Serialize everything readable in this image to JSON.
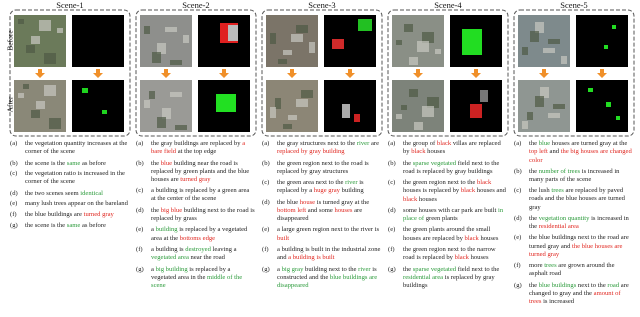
{
  "labels": {
    "before": "Before",
    "after": "After"
  },
  "colors": {
    "k": "#222222",
    "r": "#e0261f",
    "g": "#2a9a3a"
  },
  "scenes": [
    {
      "title": "Scene-1",
      "captions": [
        {
          "label": "(a)",
          "parts": [
            [
              "k",
              "the vegetation quantity increases at the corner of the scene"
            ]
          ]
        },
        {
          "label": "(b)",
          "parts": [
            [
              "k",
              "the scene is the "
            ],
            [
              "g",
              "same"
            ],
            [
              "k",
              " as before"
            ]
          ]
        },
        {
          "label": "(c)",
          "parts": [
            [
              "k",
              "the vegetation ratio is increased in the corner of the scene"
            ]
          ]
        },
        {
          "label": "(d)",
          "parts": [
            [
              "k",
              "the two scenes seem "
            ],
            [
              "g",
              "identical"
            ]
          ]
        },
        {
          "label": "(e)",
          "parts": [
            [
              "k",
              "many lush trees appear on the bareland"
            ]
          ]
        },
        {
          "label": "(f)",
          "parts": [
            [
              "k",
              "the blue buildings are "
            ],
            [
              "r",
              "turned gray"
            ]
          ]
        },
        {
          "label": "(g)",
          "parts": [
            [
              "k",
              "the scene is the "
            ],
            [
              "g",
              "same"
            ],
            [
              "k",
              " as before"
            ]
          ]
        }
      ]
    },
    {
      "title": "Scene-2",
      "captions": [
        {
          "label": "(a)",
          "parts": [
            [
              "k",
              "the gray buildings are replaced by "
            ],
            [
              "r",
              "a bare field"
            ],
            [
              "k",
              " at the top edge"
            ]
          ]
        },
        {
          "label": "(b)",
          "parts": [
            [
              "k",
              "the "
            ],
            [
              "r",
              "blue"
            ],
            [
              "k",
              " building near the road is replaced by green plants and the blue houses are "
            ],
            [
              "r",
              "turned gray"
            ]
          ]
        },
        {
          "label": "(c)",
          "parts": [
            [
              "k",
              "a building is replaced by a green area at the center of the scene"
            ]
          ]
        },
        {
          "label": "(d)",
          "parts": [
            [
              "k",
              "the "
            ],
            [
              "r",
              "big blue"
            ],
            [
              "k",
              " building next to the road is replaced by grass"
            ]
          ]
        },
        {
          "label": "(e)",
          "parts": [
            [
              "k",
              "a "
            ],
            [
              "g",
              "building"
            ],
            [
              "k",
              " is replaced by a vegetated area at the "
            ],
            [
              "r",
              "bottoms edge"
            ]
          ]
        },
        {
          "label": "(f)",
          "parts": [
            [
              "k",
              "a building is "
            ],
            [
              "g",
              "destroyed"
            ],
            [
              "k",
              " leaving a "
            ],
            [
              "g",
              "vegetated area"
            ],
            [
              "k",
              " near the road"
            ]
          ]
        },
        {
          "label": "(g)",
          "parts": [
            [
              "k",
              "a "
            ],
            [
              "g",
              "big building"
            ],
            [
              "k",
              " is replaced by a vegetated area in the "
            ],
            [
              "g",
              "middle of the scene"
            ]
          ]
        }
      ]
    },
    {
      "title": "Scene-3",
      "captions": [
        {
          "label": "(a)",
          "parts": [
            [
              "k",
              "the gray structures next to the "
            ],
            [
              "g",
              "river"
            ],
            [
              "k",
              " are "
            ],
            [
              "r",
              "replaced by gray building"
            ]
          ]
        },
        {
          "label": "(b)",
          "parts": [
            [
              "k",
              "the green region next to the road is replaced by gray structures"
            ]
          ]
        },
        {
          "label": "(c)",
          "parts": [
            [
              "k",
              "the green area next to the "
            ],
            [
              "g",
              "river"
            ],
            [
              "k",
              " is replaced by a "
            ],
            [
              "r",
              "huge gray"
            ],
            [
              "k",
              " building"
            ]
          ]
        },
        {
          "label": "(d)",
          "parts": [
            [
              "k",
              "the blue "
            ],
            [
              "r",
              "house"
            ],
            [
              "k",
              " is turned gray at the "
            ],
            [
              "r",
              "bottom left"
            ],
            [
              "k",
              " and some "
            ],
            [
              "r",
              "houses"
            ],
            [
              "k",
              " are disappeared"
            ]
          ]
        },
        {
          "label": "(e)",
          "parts": [
            [
              "k",
              "a large green region next to the river is "
            ],
            [
              "r",
              "built"
            ]
          ]
        },
        {
          "label": "(f)",
          "parts": [
            [
              "k",
              "a building is built in the industrial zone and "
            ],
            [
              "r",
              "a building is built"
            ]
          ]
        },
        {
          "label": "(g)",
          "parts": [
            [
              "k",
              "a "
            ],
            [
              "g",
              "big gray"
            ],
            [
              "k",
              " building next to the "
            ],
            [
              "g",
              "river"
            ],
            [
              "k",
              " is constructed and the "
            ],
            [
              "g",
              "blue buildings are disappeared"
            ]
          ]
        }
      ]
    },
    {
      "title": "Scene-4",
      "captions": [
        {
          "label": "(a)",
          "parts": [
            [
              "k",
              "the group of "
            ],
            [
              "r",
              "black"
            ],
            [
              "k",
              " villas are replaced by "
            ],
            [
              "r",
              "black"
            ],
            [
              "k",
              " houses"
            ]
          ]
        },
        {
          "label": "(b)",
          "parts": [
            [
              "k",
              "the "
            ],
            [
              "g",
              "sparse vegetated"
            ],
            [
              "k",
              " field next to the road is replaced by gray buildings"
            ]
          ]
        },
        {
          "label": "(c)",
          "parts": [
            [
              "k",
              "the green region next to the "
            ],
            [
              "r",
              "black"
            ],
            [
              "k",
              " houses is replaced by "
            ],
            [
              "r",
              "black"
            ],
            [
              "k",
              " houses and "
            ],
            [
              "r",
              "black"
            ],
            [
              "k",
              " houses"
            ]
          ]
        },
        {
          "label": "(d)",
          "parts": [
            [
              "k",
              "some houses with car park are built "
            ],
            [
              "g",
              "in place of"
            ],
            [
              "k",
              " green plants"
            ]
          ]
        },
        {
          "label": "(e)",
          "parts": [
            [
              "k",
              "the green plants around the small houses are replaced by "
            ],
            [
              "r",
              "black"
            ],
            [
              "k",
              " houses"
            ]
          ]
        },
        {
          "label": "(f)",
          "parts": [
            [
              "k",
              "the green region next to the narrow road is replaced by "
            ],
            [
              "r",
              "black"
            ],
            [
              "k",
              " houses"
            ]
          ]
        },
        {
          "label": "(g)",
          "parts": [
            [
              "k",
              "the "
            ],
            [
              "g",
              "sparse vegetated"
            ],
            [
              "k",
              " field next to the "
            ],
            [
              "g",
              "residential area"
            ],
            [
              "k",
              " is replaced by gray buildings"
            ]
          ]
        }
      ]
    },
    {
      "title": "Scene-5",
      "captions": [
        {
          "label": "(a)",
          "parts": [
            [
              "k",
              "the "
            ],
            [
              "g",
              "blue"
            ],
            [
              "k",
              " houses are turned gray at the "
            ],
            [
              "r",
              "top left"
            ],
            [
              "k",
              " and "
            ],
            [
              "r",
              "the big houses are changed color"
            ]
          ]
        },
        {
          "label": "(b)",
          "parts": [
            [
              "k",
              "the "
            ],
            [
              "g",
              "number of trees"
            ],
            [
              "k",
              " is increased in many parts of the scene"
            ]
          ]
        },
        {
          "label": "(c)",
          "parts": [
            [
              "k",
              "the lush "
            ],
            [
              "g",
              "trees"
            ],
            [
              "k",
              " are replaced by paved roads and the blue houses are turned gray"
            ]
          ]
        },
        {
          "label": "(d)",
          "parts": [
            [
              "k",
              "the "
            ],
            [
              "g",
              "vegetation quantity"
            ],
            [
              "k",
              " is increased in the "
            ],
            [
              "r",
              "residential area"
            ]
          ]
        },
        {
          "label": "(e)",
          "parts": [
            [
              "k",
              "the blue buildings next to the road are turned gray and "
            ],
            [
              "r",
              "the blue houses are turned gray"
            ]
          ]
        },
        {
          "label": "(f)",
          "parts": [
            [
              "k",
              "more "
            ],
            [
              "g",
              "trees"
            ],
            [
              "k",
              " are grown around the asphalt road"
            ]
          ]
        },
        {
          "label": "(g)",
          "parts": [
            [
              "k",
              "the "
            ],
            [
              "g",
              "blue buildings"
            ],
            [
              "k",
              " next to the "
            ],
            [
              "g",
              "road"
            ],
            [
              "k",
              " are changed to gray and the "
            ],
            [
              "r",
              "amount of trees"
            ],
            [
              "k",
              " is increased"
            ]
          ]
        }
      ]
    }
  ]
}
